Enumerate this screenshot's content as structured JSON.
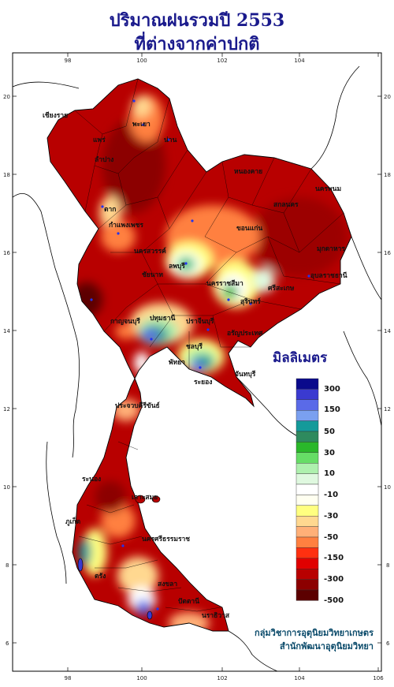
{
  "title": {
    "line1": "ปริมาณฝนรวมปี 2553",
    "line2": "ที่ต่างจากค่าปกติ"
  },
  "axes": {
    "x_ticks": [
      "98",
      "100",
      "102",
      "104",
      "106"
    ],
    "y_ticks": [
      "20",
      "18",
      "16",
      "14",
      "12",
      "10",
      "8",
      "6"
    ]
  },
  "legend": {
    "title": "มิลลิเมตร",
    "colors": [
      "#0a0a8c",
      "#3a3ad0",
      "#5a6ae8",
      "#7aa0f0",
      "#149a9a",
      "#2e8a5e",
      "#2ab82a",
      "#66dd66",
      "#aef0ae",
      "#dff8df",
      "#ffffff",
      "#fffff0",
      "#ffff80",
      "#ffd890",
      "#ffb078",
      "#ff8040",
      "#ff3010",
      "#e00000",
      "#b80000",
      "#8c0000",
      "#5c0000"
    ],
    "labels": [
      "300",
      "150",
      "50",
      "30",
      "10",
      "-10",
      "-30",
      "-50",
      "-150",
      "-300",
      "-500"
    ]
  },
  "map_labels": [
    "เชียงราย",
    "พะเยา",
    "น่าน",
    "แพร่",
    "ลำปาง",
    "ตาก",
    "กำแพงเพชร",
    "หนองคาย",
    "นครพนม",
    "สกลนคร",
    "ขอนแก่น",
    "มุกดาหาร",
    "นครสวรรค์",
    "อุบลราชธานี",
    "ลพบุรี",
    "นครราชสีมา",
    "สุรินทร์",
    "ศรีสะเกษ",
    "ชัยนาท",
    "กาญจนบุรี",
    "ปทุมธานี",
    "ปราจีนบุรี",
    "อรัญประเทศ",
    "ชลบุรี",
    "พัทยา",
    "ระยอง",
    "จันทบุรี",
    "ประจวบคีรีขันธ์",
    "ระนอง",
    "เกาะสมุย",
    "ภูเก็ต",
    "นครศรีธรรมราช",
    "ตรัง",
    "สงขลา",
    "ปัตตานี",
    "นราธิวาส"
  ],
  "credit": {
    "line1": "กลุ่มวิชาการอุตุนิยมวิทยาเกษตร",
    "line2": "สำนักพัฒนาอุตุนิยมวิทยา"
  }
}
